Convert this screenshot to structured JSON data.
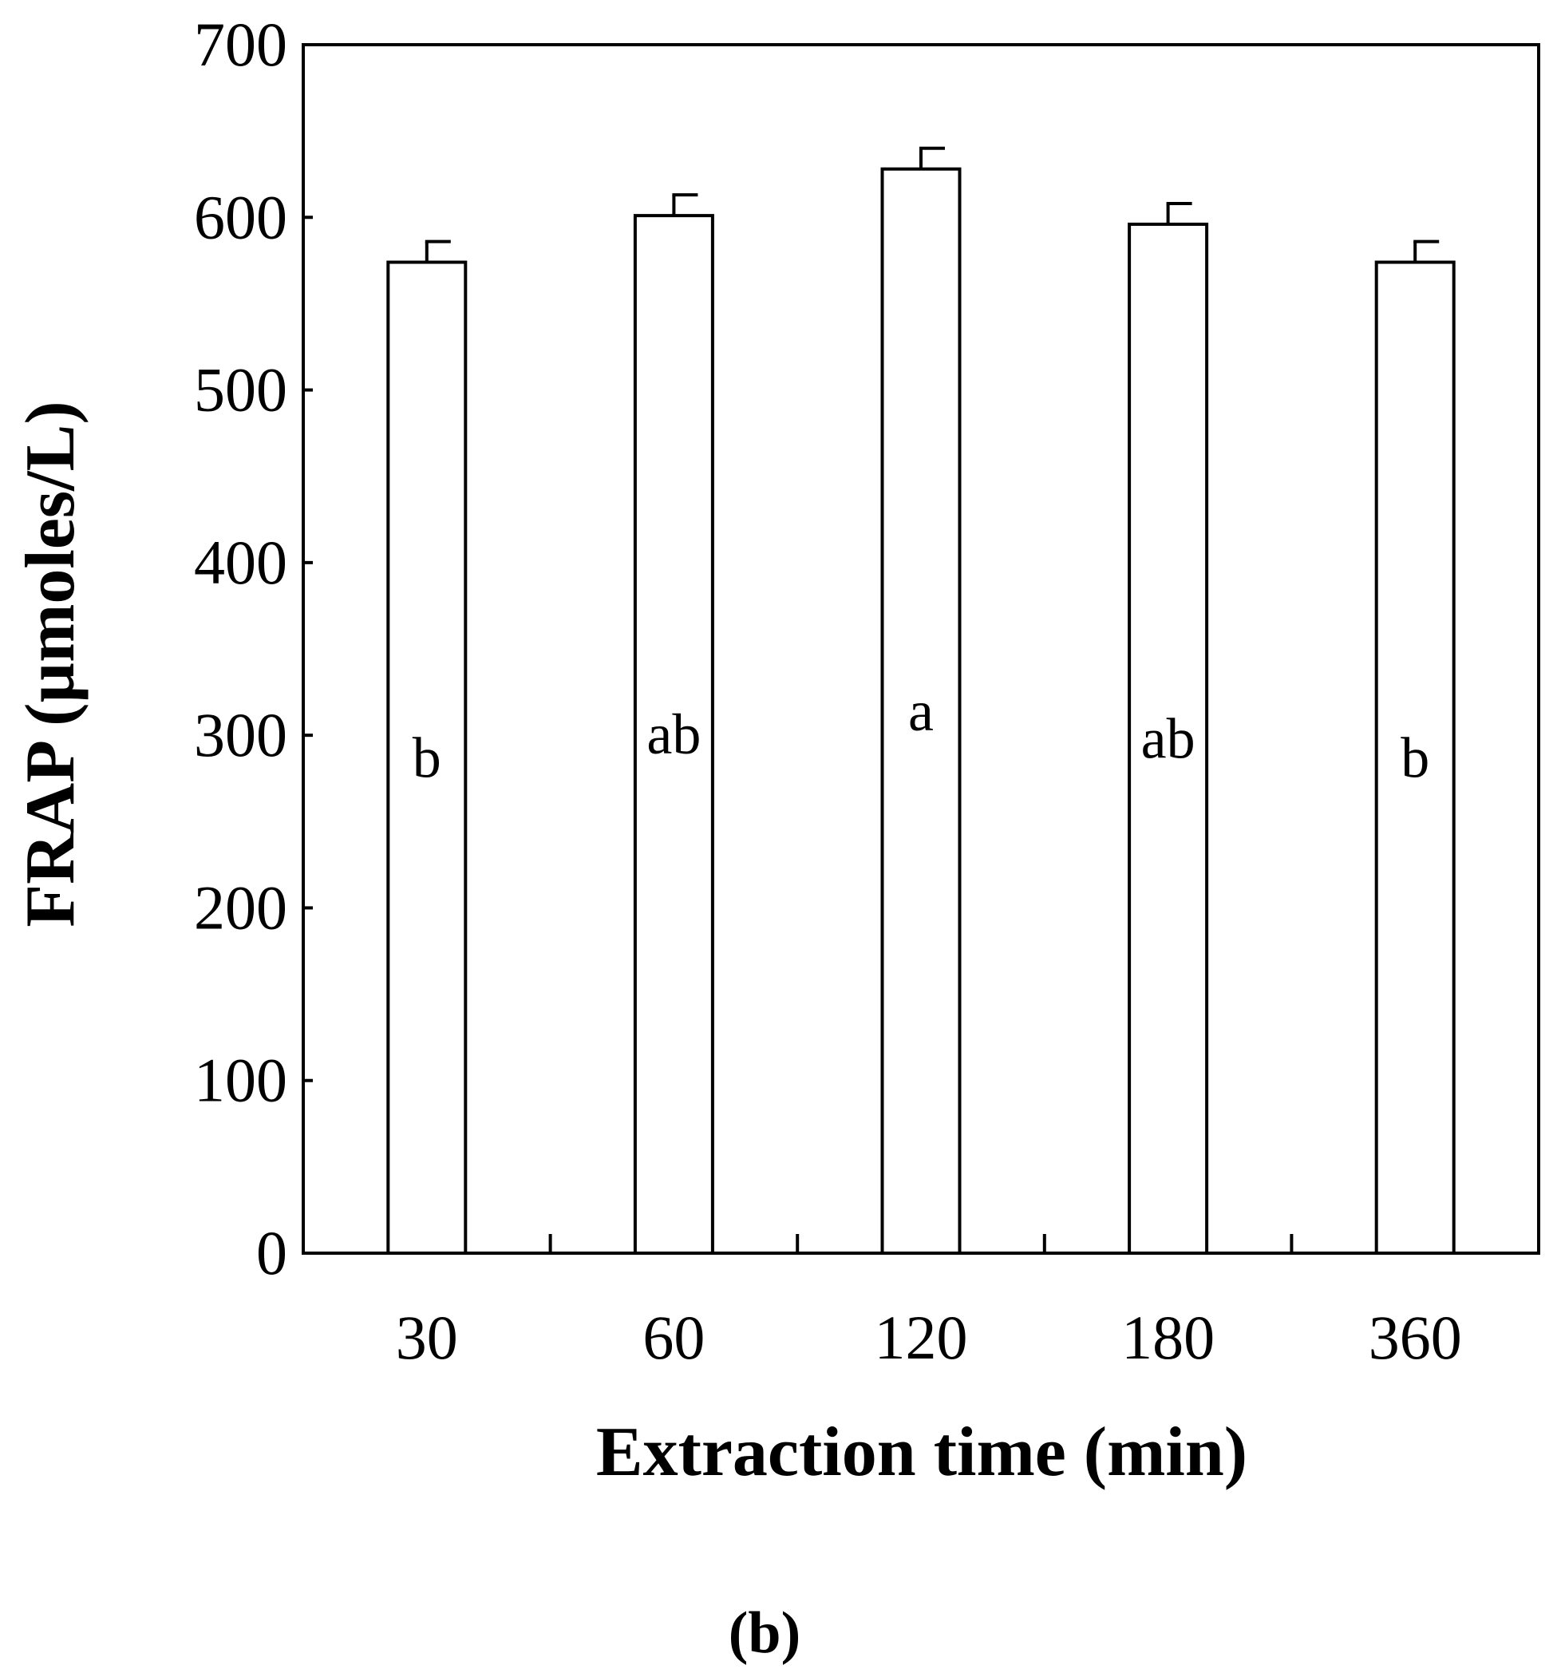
{
  "chart_data": {
    "type": "bar",
    "categories": [
      "30",
      "60",
      "120",
      "180",
      "360"
    ],
    "values": [
      574,
      601,
      628,
      596,
      574
    ],
    "errors": [
      12,
      12,
      12,
      12,
      12
    ],
    "significance_labels": [
      "b",
      "ab",
      "a",
      "ab",
      "b"
    ],
    "xlabel": "Extraction time (min)",
    "ylabel": "FRAP (µmoles/L)",
    "ylim": [
      0,
      700
    ],
    "yticks": [
      0,
      100,
      200,
      300,
      400,
      500,
      600,
      700
    ],
    "grid": false,
    "bar_fill": "#ffffff",
    "bar_stroke": "#000000",
    "panel_label": "(b)"
  }
}
